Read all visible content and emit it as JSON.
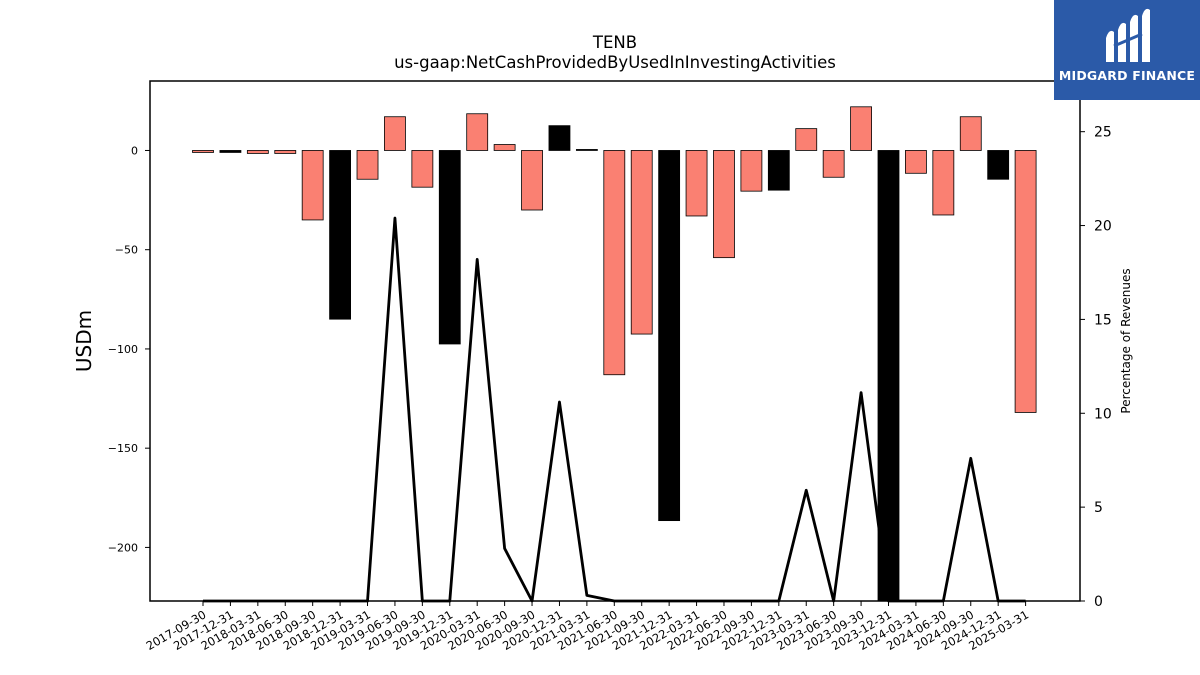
{
  "chart_data": {
    "type": "bar",
    "title": "TENB",
    "subtitle": "us-gaap:NetCashProvidedByUsedInInvestingActivities",
    "ylabel": "USDm",
    "y2label": "Percentage of Revenues",
    "ylim": [
      -227,
      35
    ],
    "y2lim": [
      0,
      27.7
    ],
    "yticks": [
      0,
      -50,
      -100,
      -150,
      -200
    ],
    "y2ticks": [
      0,
      5,
      10,
      15,
      20,
      25
    ],
    "categories": [
      "2017-09-30",
      "2017-12-31",
      "2018-03-31",
      "2018-06-30",
      "2018-09-30",
      "2018-12-31",
      "2019-03-31",
      "2019-06-30",
      "2019-09-30",
      "2019-12-31",
      "2020-03-31",
      "2020-06-30",
      "2020-09-30",
      "2020-12-31",
      "2021-03-31",
      "2021-06-30",
      "2021-09-30",
      "2021-12-31",
      "2022-03-31",
      "2022-06-30",
      "2022-09-30",
      "2022-12-31",
      "2023-03-31",
      "2023-06-30",
      "2023-09-30",
      "2023-12-31",
      "2024-03-31",
      "2024-06-30",
      "2024-09-30",
      "2024-12-31",
      "2025-03-31"
    ],
    "series": [
      {
        "kind": "bar",
        "values": [
          -1,
          -1,
          -1.5,
          -1.5,
          -35,
          -85,
          -14.5,
          17,
          -18.5,
          -97.5,
          18.5,
          3,
          -30,
          12.5,
          0.5,
          -113,
          -92.5,
          -186.5,
          -33,
          -54,
          -20.5,
          -20,
          11,
          -13.5,
          22,
          -230,
          -11.5,
          -32.5,
          17,
          -14.5,
          -132
        ],
        "colors": [
          "#fa8072",
          "#000000",
          "#fa8072",
          "#fa8072",
          "#fa8072",
          "#000000",
          "#fa8072",
          "#fa8072",
          "#fa8072",
          "#000000",
          "#fa8072",
          "#fa8072",
          "#fa8072",
          "#000000",
          "#000000",
          "#fa8072",
          "#fa8072",
          "#000000",
          "#fa8072",
          "#fa8072",
          "#fa8072",
          "#000000",
          "#fa8072",
          "#fa8072",
          "#fa8072",
          "#000000",
          "#fa8072",
          "#fa8072",
          "#fa8072",
          "#000000",
          "#fa8072"
        ]
      },
      {
        "kind": "line",
        "axis": "right",
        "color": "#000000",
        "values": [
          0,
          0,
          0,
          0,
          0,
          0,
          0,
          20.4,
          0,
          0,
          18.2,
          2.8,
          0,
          10.6,
          0.3,
          0,
          0,
          0,
          0,
          0,
          0,
          0,
          5.9,
          0,
          11.1,
          0,
          0,
          0,
          7.6,
          0,
          0
        ]
      }
    ]
  },
  "logo": {
    "text": "MIDGARD FINANCE"
  }
}
